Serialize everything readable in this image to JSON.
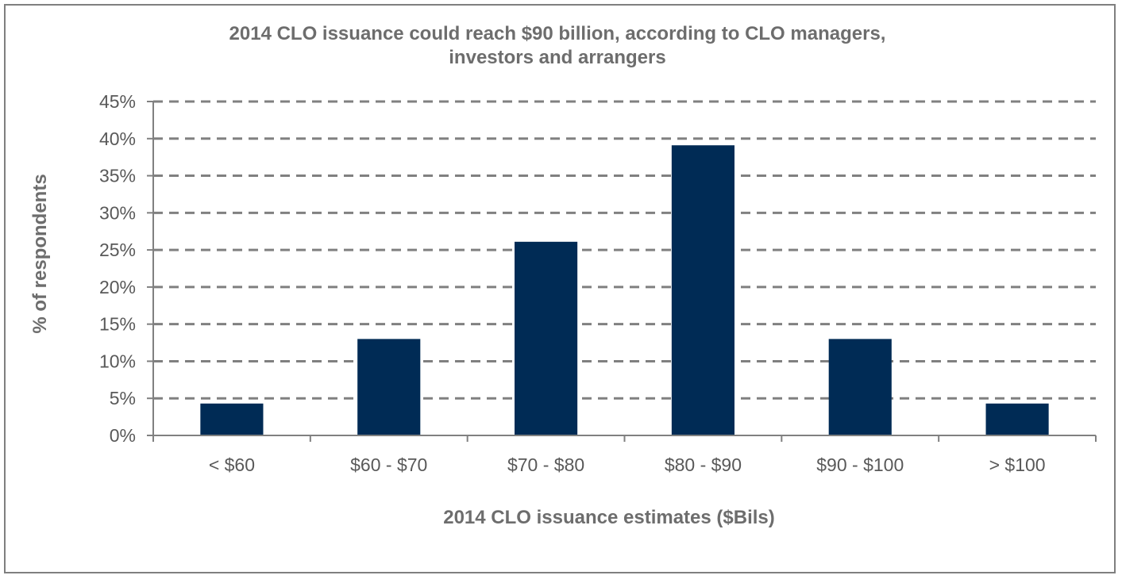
{
  "chart_data": {
    "type": "bar",
    "title_lines": [
      "2014 CLO issuance could reach $90 billion, according to CLO managers,",
      "investors and arrangers"
    ],
    "xlabel": "2014 CLO issuance estimates ($Bils)",
    "ylabel": "% of respondents",
    "categories": [
      "< $60",
      "$60 - $70",
      "$70 - $80",
      "$80 - $90",
      "$90 - $100",
      "> $100"
    ],
    "values": [
      4.3,
      13.0,
      26.1,
      39.1,
      13.0,
      4.3
    ],
    "y_ticks": [
      "0%",
      "5%",
      "10%",
      "15%",
      "20%",
      "25%",
      "30%",
      "35%",
      "40%",
      "45%"
    ],
    "ylim": [
      0,
      45
    ],
    "y_unit": "%",
    "grid": true,
    "legend": "none",
    "bar_color": "#002b55"
  }
}
